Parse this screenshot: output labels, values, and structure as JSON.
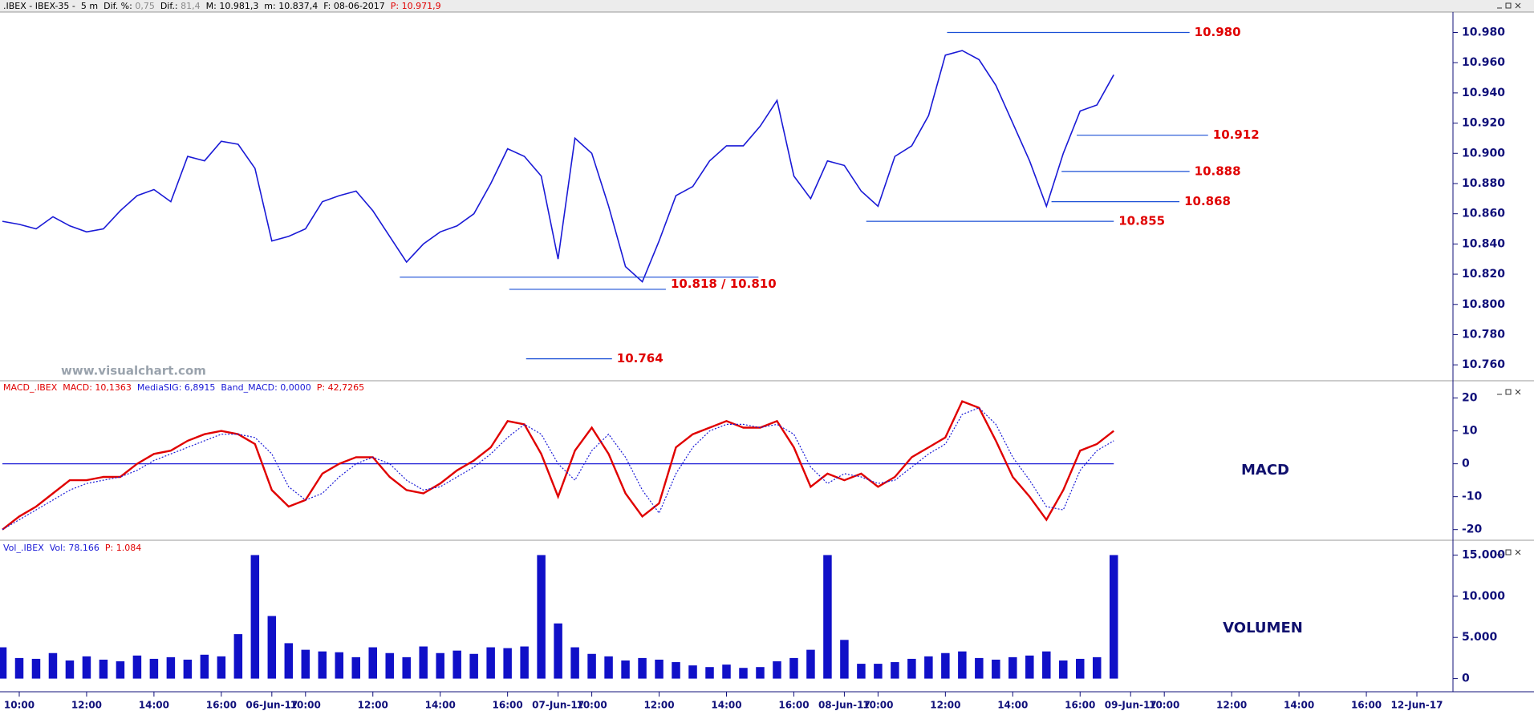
{
  "chart_data": [
    {
      "type": "line",
      "header": [
        {
          "text": ".IBEX - IBEX-35 -  5 m  Dif. %: ",
          "color": "#000000"
        },
        {
          "text": "0,75",
          "color": "#8a8a8a"
        },
        {
          "text": "  Dif.: ",
          "color": "#000000"
        },
        {
          "text": "81,4",
          "color": "#8a8a8a"
        },
        {
          "text": "  M: 10.981,3  m: 10.837,4  F: 08-06-2017  ",
          "color": "#000000"
        },
        {
          "text": "P: 10.971,9",
          "color": "#e00000"
        }
      ],
      "watermark": "www.visualchart.com",
      "color": "#1a1ad6",
      "values": [
        10855,
        10853,
        10850,
        10858,
        10852,
        10848,
        10850,
        10862,
        10872,
        10876,
        10868,
        10898,
        10895,
        10908,
        10906,
        10890,
        10842,
        10845,
        10850,
        10868,
        10872,
        10875,
        10862,
        10845,
        10828,
        10840,
        10848,
        10852,
        10860,
        10880,
        10903,
        10898,
        10885,
        10830,
        10910,
        10900,
        10865,
        10825,
        10815,
        10842,
        10872,
        10878,
        10895,
        10905,
        10905,
        10918,
        10935,
        10885,
        10870,
        10895,
        10892,
        10875,
        10865,
        10898,
        10905,
        10925,
        10965,
        10968,
        10962,
        10945,
        10920,
        10895,
        10865,
        10900,
        10928,
        10932,
        10952
      ],
      "xlim": [
        0,
        86
      ],
      "ylim": [
        10750,
        10993
      ],
      "yticks": [
        {
          "value": 10760,
          "label": "10.760"
        },
        {
          "value": 10780,
          "label": "10.780"
        },
        {
          "value": 10800,
          "label": "10.800"
        },
        {
          "value": 10820,
          "label": "10.820"
        },
        {
          "value": 10840,
          "label": "10.840"
        },
        {
          "value": 10860,
          "label": "10.860"
        },
        {
          "value": 10880,
          "label": "10.880"
        },
        {
          "value": 10900,
          "label": "10.900"
        },
        {
          "value": 10920,
          "label": "10.920"
        },
        {
          "value": 10940,
          "label": "10.940"
        },
        {
          "value": 10960,
          "label": "10.960"
        },
        {
          "value": 10980,
          "label": "10.980"
        }
      ],
      "annotation_color": "#e00000",
      "level_color": "#1a4fd6",
      "annotations": [
        {
          "label": "10.980",
          "levels": [
            {
              "value": 10980,
              "from": 56.1,
              "to": 70.5
            }
          ]
        },
        {
          "label": "10.912",
          "levels": [
            {
              "value": 10912,
              "from": 63.8,
              "to": 71.6
            }
          ]
        },
        {
          "label": "10.888",
          "levels": [
            {
              "value": 10888,
              "from": 62.9,
              "to": 70.5
            }
          ]
        },
        {
          "label": "10.868",
          "levels": [
            {
              "value": 10868,
              "from": 62.3,
              "to": 69.9
            }
          ]
        },
        {
          "label": "10.855",
          "levels": [
            {
              "value": 10855,
              "from": 51.3,
              "to": 66
            }
          ]
        },
        {
          "label": "10.818 / 10.810",
          "levels": [
            {
              "value": 10818,
              "from": 23.6,
              "to": 44.9
            },
            {
              "value": 10810,
              "from": 30.1,
              "to": 39.4
            }
          ]
        },
        {
          "label": "10.764",
          "levels": [
            {
              "value": 10764,
              "from": 31.1,
              "to": 36.2
            }
          ]
        }
      ]
    },
    {
      "type": "line",
      "header": [
        {
          "text": "MACD_.IBEX  MACD: 10,1363  ",
          "color": "#e00000"
        },
        {
          "text": "MediaSIG: 6,8915  Band_MACD: 0,0000  ",
          "color": "#1a1ad6"
        },
        {
          "text": "P: 42,7265",
          "color": "#e00000"
        }
      ],
      "label": "MACD",
      "series": [
        {
          "color": "#e00000",
          "style": "solid",
          "values": [
            -20,
            -16,
            -13,
            -9,
            -5,
            -5,
            -4,
            -4,
            0,
            3,
            4,
            7,
            9,
            10,
            9,
            6,
            -8,
            -13,
            -11,
            -3,
            0,
            2,
            2,
            -4,
            -8,
            -9,
            -6,
            -2,
            1,
            5,
            13,
            12,
            3,
            -10,
            4,
            11,
            3,
            -9,
            -16,
            -12,
            5,
            9,
            11,
            13,
            11,
            11,
            13,
            5,
            -7,
            -3,
            -5,
            -3,
            -7,
            -4,
            2,
            5,
            8,
            19,
            17,
            7,
            -4,
            -10,
            -17,
            -8,
            4,
            6,
            10
          ]
        },
        {
          "color": "#1a1ad6",
          "style": "dotted",
          "values": [
            -20,
            -17,
            -14,
            -11,
            -8,
            -6,
            -5,
            -4,
            -2,
            1,
            3,
            5,
            7,
            9,
            9,
            8,
            3,
            -7,
            -11,
            -9,
            -4,
            0,
            2,
            0,
            -5,
            -8,
            -7,
            -4,
            -1,
            3,
            8,
            12,
            9,
            0,
            -5,
            4,
            9,
            2,
            -8,
            -15,
            -3,
            5,
            10,
            12,
            12,
            11,
            12,
            9,
            -1,
            -6,
            -3,
            -4,
            -6,
            -5,
            -1,
            3,
            6,
            15,
            17,
            12,
            2,
            -5,
            -13,
            -14,
            -2,
            4,
            7
          ]
        }
      ],
      "hline": 0,
      "hline_color": "#1a1ad6",
      "xlim": [
        0,
        86
      ],
      "ylim": [
        -23,
        25
      ],
      "yticks": [
        -20,
        -10,
        0,
        10,
        20
      ]
    },
    {
      "type": "bar",
      "header": [
        {
          "text": "Vol_.IBEX  Vol: 78.166  ",
          "color": "#1a1ad6"
        },
        {
          "text": "P: 1.084",
          "color": "#e00000"
        }
      ],
      "label": "VOLUMEN",
      "color": "#1010c8",
      "values": [
        3800,
        2500,
        2400,
        3100,
        2200,
        2700,
        2300,
        2100,
        2800,
        2400,
        2600,
        2300,
        2900,
        2700,
        5400,
        15000,
        7600,
        4300,
        3500,
        3300,
        3200,
        2600,
        3800,
        3100,
        2600,
        3900,
        3100,
        3400,
        3000,
        3800,
        3700,
        3900,
        15000,
        6700,
        3800,
        3000,
        2700,
        2200,
        2500,
        2300,
        2000,
        1600,
        1400,
        1700,
        1300,
        1400,
        2100,
        2500,
        3500,
        15000,
        4700,
        1800,
        1800,
        2000,
        2400,
        2700,
        3100,
        3300,
        2500,
        2300,
        2600,
        2800,
        3300,
        2200,
        2400,
        2600,
        15000
      ],
      "xlim": [
        0,
        86
      ],
      "ylim": [
        -1500,
        16700
      ],
      "yticks": [
        0,
        {
          "value": 5000,
          "label": "5.000"
        },
        {
          "value": 10000,
          "label": "10.000"
        },
        {
          "value": 15000,
          "label": "15.000"
        }
      ],
      "xticks": [
        {
          "value": 1,
          "label": "10:00"
        },
        {
          "value": 5,
          "label": "12:00"
        },
        {
          "value": 9,
          "label": "14:00"
        },
        {
          "value": 13,
          "label": "16:00"
        },
        {
          "value": 16,
          "label": "06-Jun-17"
        },
        {
          "value": 18,
          "label": "10:00"
        },
        {
          "value": 22,
          "label": "12:00"
        },
        {
          "value": 26,
          "label": "14:00"
        },
        {
          "value": 30,
          "label": "16:00"
        },
        {
          "value": 33,
          "label": "07-Jun-17"
        },
        {
          "value": 35,
          "label": "10:00"
        },
        {
          "value": 39,
          "label": "12:00"
        },
        {
          "value": 43,
          "label": "14:00"
        },
        {
          "value": 47,
          "label": "16:00"
        },
        {
          "value": 50,
          "label": "08-Jun-17"
        },
        {
          "value": 52,
          "label": "10:00"
        },
        {
          "value": 56,
          "label": "12:00"
        },
        {
          "value": 60,
          "label": "14:00"
        },
        {
          "value": 64,
          "label": "16:00"
        },
        {
          "value": 67,
          "label": "09-Jun-17"
        },
        {
          "value": 69,
          "label": "10:00"
        },
        {
          "value": 73,
          "label": "12:00"
        },
        {
          "value": 77,
          "label": "14:00"
        },
        {
          "value": 81,
          "label": "16:00"
        },
        {
          "value": 84,
          "label": "12-Jun-17"
        }
      ]
    }
  ]
}
